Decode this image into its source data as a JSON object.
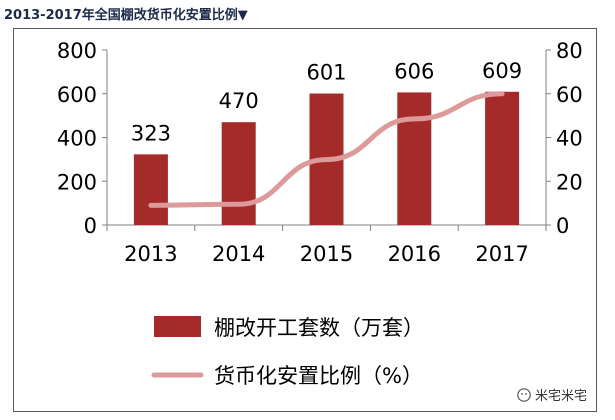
{
  "page": {
    "title": "2013-2017年全国棚改货币化安置比例▼",
    "watermark": "米宅米宅"
  },
  "colors": {
    "bar": "#a52a2a",
    "line": "#dd9a9a",
    "axis": "#808080",
    "text": "#000000"
  },
  "chart_data": {
    "type": "bar",
    "categories": [
      "2013",
      "2014",
      "2015",
      "2016",
      "2017"
    ],
    "series": [
      {
        "name": "棚改开工套数（万套）",
        "type": "bar",
        "axis": "left",
        "values": [
          323,
          470,
          601,
          606,
          609
        ],
        "data_labels": [
          "323",
          "470",
          "601",
          "606",
          "609"
        ]
      },
      {
        "name": "货币化安置比例（%）",
        "type": "line",
        "axis": "right",
        "values": [
          9,
          9.5,
          29.9,
          48.5,
          60
        ]
      }
    ],
    "ylim_left": [
      0,
      800
    ],
    "yticks_left": [
      "0",
      "200",
      "400",
      "600",
      "800"
    ],
    "ylim_right": [
      0,
      80
    ],
    "yticks_right": [
      "0",
      "20",
      "40",
      "60",
      "80"
    ],
    "legend_position": "bottom",
    "grid": false
  }
}
